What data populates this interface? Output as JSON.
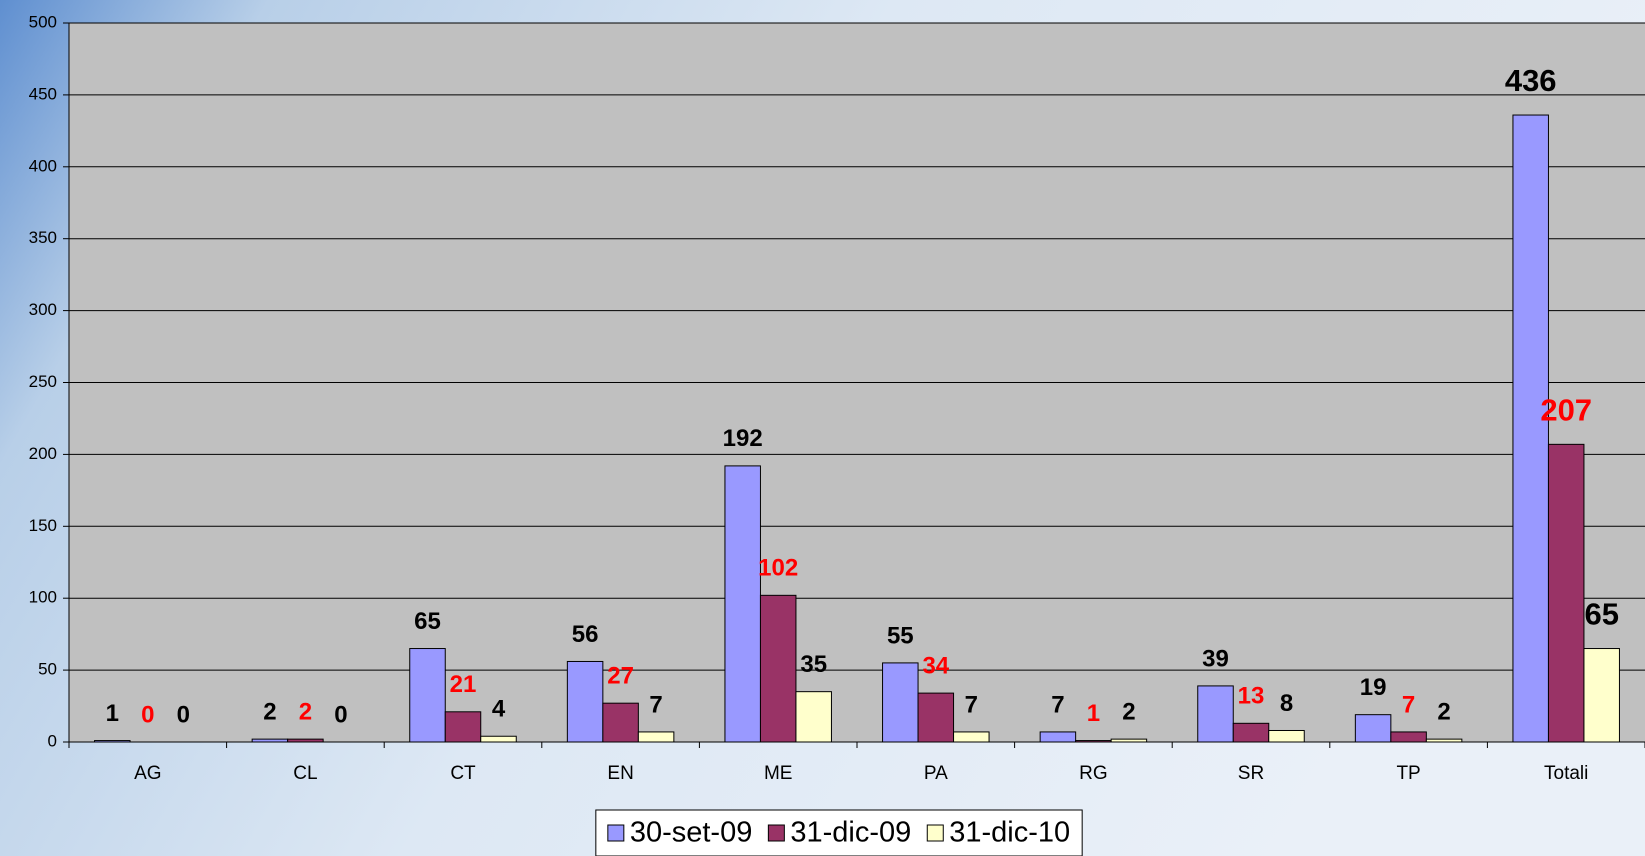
{
  "chart_data": {
    "type": "bar",
    "categories": [
      "AG",
      "CL",
      "CT",
      "EN",
      "ME",
      "PA",
      "RG",
      "SR",
      "TP",
      "Totali"
    ],
    "series": [
      {
        "name": "30-set-09",
        "color": "#9999ff",
        "label_color": "#000000",
        "values": [
          1,
          2,
          65,
          56,
          192,
          55,
          7,
          39,
          19,
          436
        ]
      },
      {
        "name": "31-dic-09",
        "color": "#993366",
        "label_color": "#ff0000",
        "values": [
          0,
          2,
          21,
          27,
          102,
          34,
          1,
          13,
          7,
          207
        ]
      },
      {
        "name": "31-dic-10",
        "color": "#ffffcc",
        "label_color": "#000000",
        "values": [
          0,
          0,
          4,
          7,
          35,
          7,
          2,
          8,
          2,
          65
        ]
      }
    ],
    "ylim": [
      0,
      500
    ],
    "yticks": [
      0,
      50,
      100,
      150,
      200,
      250,
      300,
      350,
      400,
      450,
      500
    ],
    "grid": true,
    "legend": "bottom"
  }
}
